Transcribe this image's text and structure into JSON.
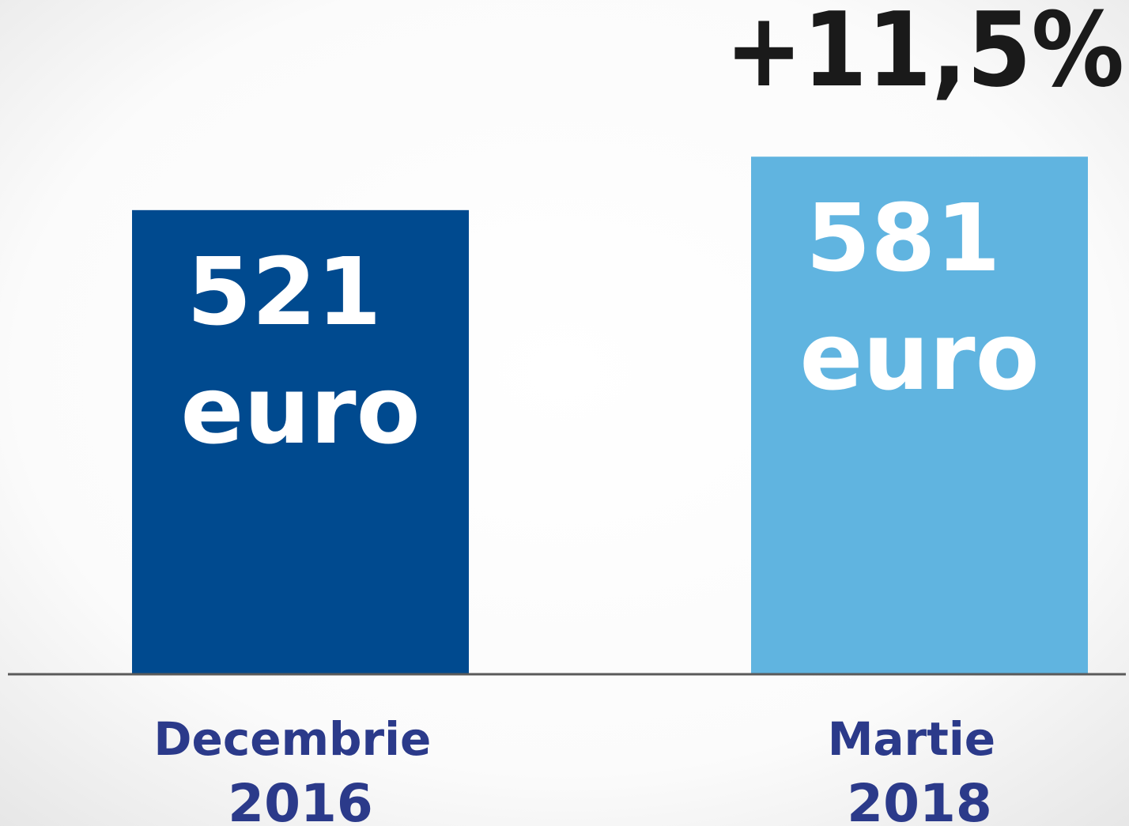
{
  "chart_data": {
    "type": "bar",
    "annotation": "+11,5%",
    "categories": [
      "Decembrie 2016",
      "Martie 2018"
    ],
    "values": [
      521,
      581
    ],
    "value_labels": [
      "521 euro",
      "581 euro"
    ],
    "colors": [
      "#004a8f",
      "#60b4e0"
    ],
    "ylim": [
      0,
      650
    ]
  }
}
